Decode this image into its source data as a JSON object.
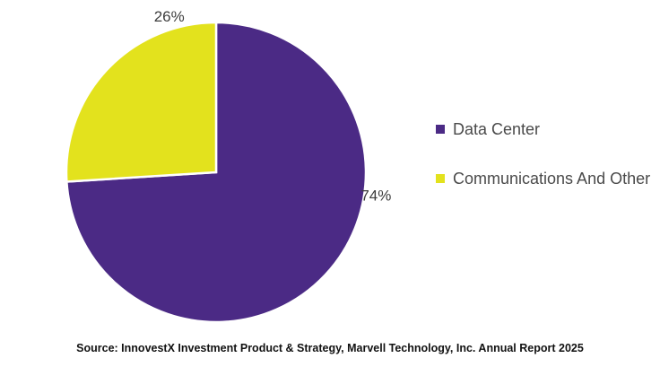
{
  "chart_data": {
    "type": "pie",
    "title": "",
    "start": "12 o'clock, clockwise",
    "slices": [
      {
        "label": "Data Center",
        "value": 74,
        "display": "74%",
        "color": "#4b2a85"
      },
      {
        "label": "Communications And Other",
        "value": 26,
        "display": "26%",
        "color": "#e3e21d"
      }
    ],
    "legend_position": "right"
  },
  "legend": {
    "items": [
      {
        "label": "Data Center",
        "color": "#4b2a85"
      },
      {
        "label": "Communications And Other",
        "color": "#e3e21d"
      }
    ]
  },
  "footer": {
    "source": "Source: InnovestX Investment Product & Strategy, Marvell Technology, Inc.  Annual Report 2025"
  }
}
